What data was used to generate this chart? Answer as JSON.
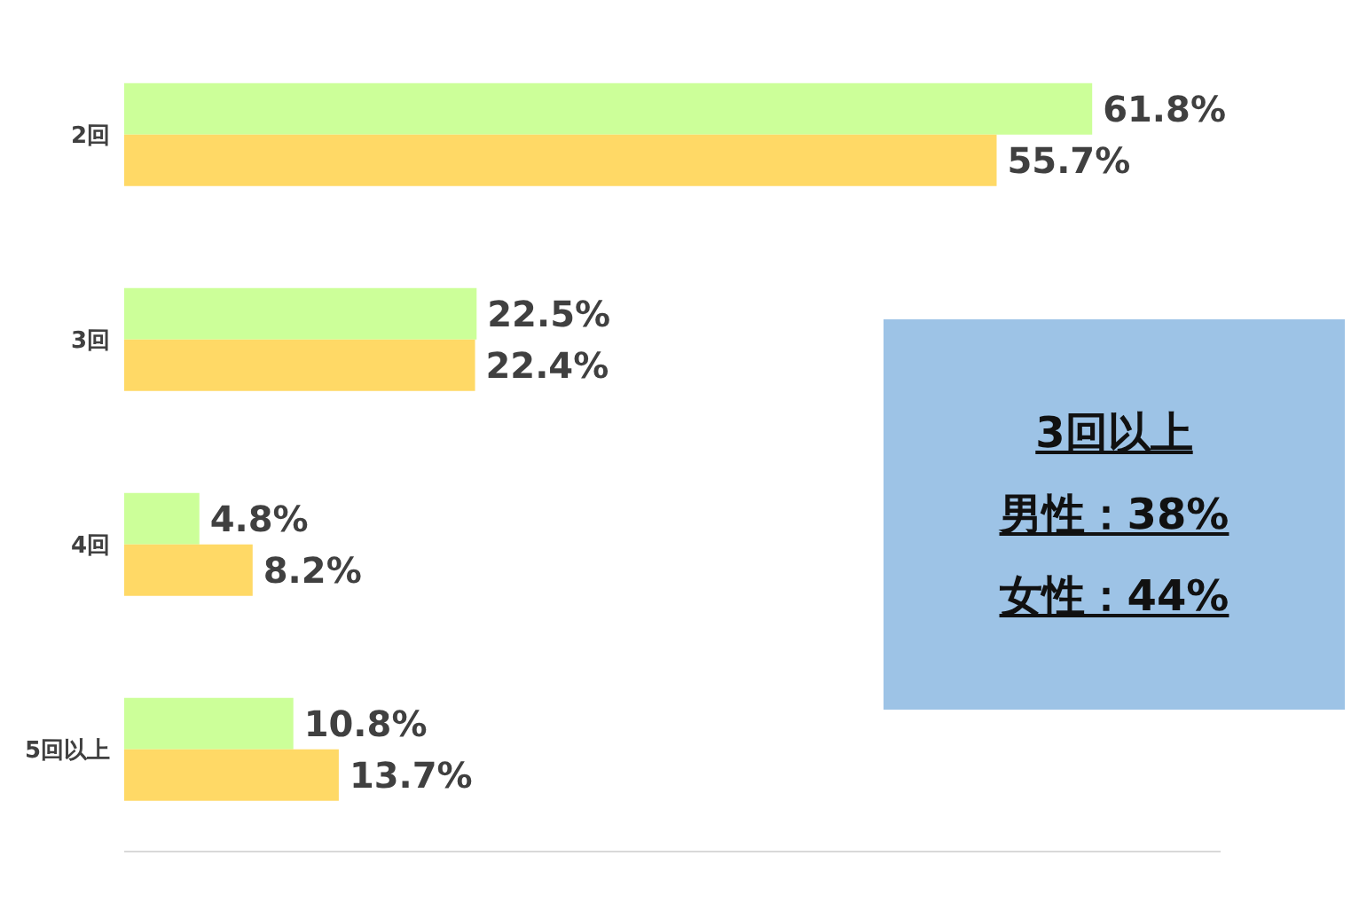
{
  "chart_data": {
    "type": "bar",
    "orientation": "horizontal",
    "categories": [
      "2回",
      "3回",
      "4回",
      "5回以上"
    ],
    "series": [
      {
        "color": "#ccff99",
        "values": [
          61.8,
          22.5,
          4.8,
          10.8
        ],
        "value_labels": [
          "61.8%",
          "22.5%",
          "4.8%",
          "10.8%"
        ]
      },
      {
        "color": "#ffd966",
        "values": [
          55.7,
          22.4,
          8.2,
          13.7
        ],
        "value_labels": [
          "55.7%",
          "22.4%",
          "8.2%",
          "13.7%"
        ]
      }
    ],
    "xlim": [
      0,
      70
    ],
    "tick_labels": "y",
    "legend": false,
    "annotations": [
      "3回以上",
      "男性：38%",
      "女性：44%"
    ]
  }
}
